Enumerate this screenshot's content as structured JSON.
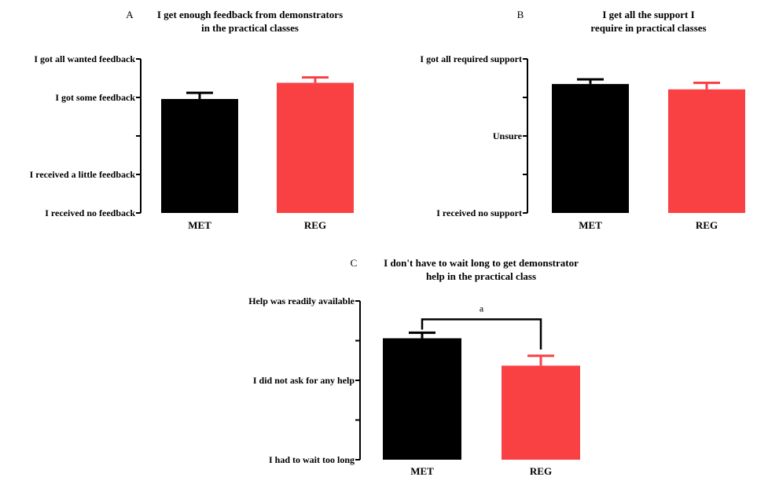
{
  "chart_data": [
    {
      "type": "bar",
      "panel": "A",
      "title": "I get enough feedback from demonstrators",
      "subtitle": "in the practical classes",
      "categories": [
        "MET",
        "REG"
      ],
      "values": [
        2.96,
        3.38
      ],
      "errors": [
        0.16,
        0.14
      ],
      "ylim": [
        0,
        4
      ],
      "yticks": [
        0,
        1,
        2,
        3,
        4
      ],
      "yticklabels": [
        "I received no feedback",
        "I received a little feedback",
        "",
        "I got some feedback",
        "I got all wanted feedback"
      ],
      "colors": [
        "#000000",
        "#f94144"
      ]
    },
    {
      "type": "bar",
      "panel": "B",
      "title": "I get all the support I",
      "subtitle": "require in practical classes",
      "categories": [
        "MET",
        "REG"
      ],
      "values": [
        3.35,
        3.21
      ],
      "errors": [
        0.12,
        0.17
      ],
      "ylim": [
        0,
        4
      ],
      "yticks": [
        0,
        1,
        2,
        3,
        4
      ],
      "yticklabels": [
        "I received no support",
        "",
        "Unsure",
        "",
        "I got all required support"
      ],
      "colors": [
        "#000000",
        "#f94144"
      ]
    },
    {
      "type": "bar",
      "panel": "C",
      "title": "I don't have to wait long to get demonstrator",
      "subtitle": "help in the practical class",
      "categories": [
        "MET",
        "REG"
      ],
      "values": [
        3.06,
        2.37
      ],
      "errors": [
        0.14,
        0.25
      ],
      "ylim": [
        0,
        4
      ],
      "yticks": [
        0,
        1,
        2,
        3,
        4
      ],
      "yticklabels": [
        "I had to wait too long",
        "",
        "I did not ask for any help",
        "",
        "Help was readily available"
      ],
      "colors": [
        "#000000",
        "#f94144"
      ],
      "significance": {
        "pair": [
          0,
          1
        ],
        "label": "a"
      }
    }
  ]
}
